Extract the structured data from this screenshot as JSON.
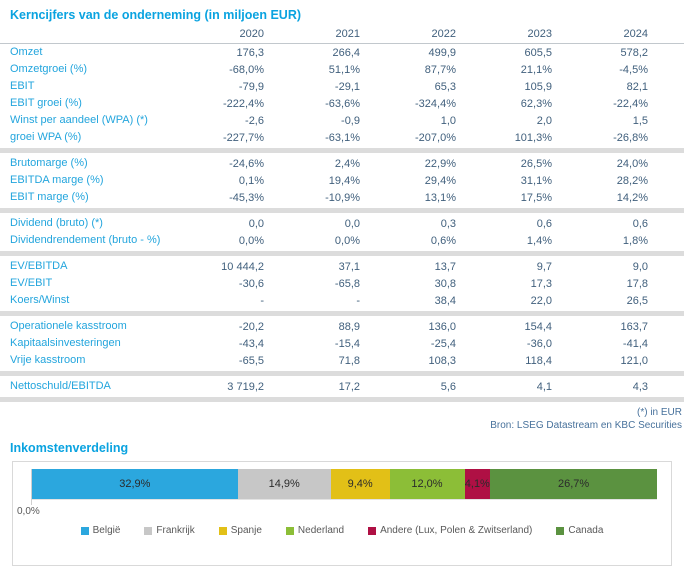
{
  "theme": {
    "accent_blue": "#0AA3E0",
    "row_label_blue": "#23A5DD",
    "value_text": "#41607D",
    "footnote_text": "#47719B",
    "separator_gray": "#DCDCDC",
    "legend_text": "#595959"
  },
  "chart_data": [
    {
      "type": "table",
      "title": "Kerncijfers van de onderneming (in miljoen EUR)",
      "columns": [
        "2020",
        "2021",
        "2022",
        "2023",
        "2024"
      ],
      "groups": [
        {
          "rows": [
            {
              "label": "Omzet",
              "values": [
                "176,3",
                "266,4",
                "499,9",
                "605,5",
                "578,2"
              ]
            },
            {
              "label": "Omzetgroei (%)",
              "values": [
                "-68,0%",
                "51,1%",
                "87,7%",
                "21,1%",
                "-4,5%"
              ]
            },
            {
              "label": "EBIT",
              "values": [
                "-79,9",
                "-29,1",
                "65,3",
                "105,9",
                "82,1"
              ]
            },
            {
              "label": "EBIT groei (%)",
              "values": [
                "-222,4%",
                "-63,6%",
                "-324,4%",
                "62,3%",
                "-22,4%"
              ]
            },
            {
              "label": "Winst per aandeel (WPA) (*)",
              "values": [
                "-2,6",
                "-0,9",
                "1,0",
                "2,0",
                "1,5"
              ]
            },
            {
              "label": "groei WPA (%)",
              "values": [
                "-227,7%",
                "-63,1%",
                "-207,0%",
                "101,3%",
                "-26,8%"
              ]
            }
          ]
        },
        {
          "rows": [
            {
              "label": "Brutomarge (%)",
              "values": [
                "-24,6%",
                "2,4%",
                "22,9%",
                "26,5%",
                "24,0%"
              ]
            },
            {
              "label": "EBITDA marge (%)",
              "values": [
                "0,1%",
                "19,4%",
                "29,4%",
                "31,1%",
                "28,2%"
              ]
            },
            {
              "label": "EBIT marge (%)",
              "values": [
                "-45,3%",
                "-10,9%",
                "13,1%",
                "17,5%",
                "14,2%"
              ]
            }
          ]
        },
        {
          "rows": [
            {
              "label": "Dividend (bruto) (*)",
              "values": [
                "0,0",
                "0,0",
                "0,3",
                "0,6",
                "0,6"
              ]
            },
            {
              "label": "Dividendrendement (bruto - %)",
              "values": [
                "0,0%",
                "0,0%",
                "0,6%",
                "1,4%",
                "1,8%"
              ]
            }
          ]
        },
        {
          "rows": [
            {
              "label": "EV/EBITDA",
              "values": [
                "10 444,2",
                "37,1",
                "13,7",
                "9,7",
                "9,0"
              ]
            },
            {
              "label": "EV/EBIT",
              "values": [
                "-30,6",
                "-65,8",
                "30,8",
                "17,3",
                "17,8"
              ]
            },
            {
              "label": "Koers/Winst",
              "values": [
                "-",
                "-",
                "38,4",
                "22,0",
                "26,5"
              ]
            }
          ]
        },
        {
          "rows": [
            {
              "label": "Operationele kasstroom",
              "values": [
                "-20,2",
                "88,9",
                "136,0",
                "154,4",
                "163,7"
              ]
            },
            {
              "label": "Kapitaalsinvesteringen",
              "values": [
                "-43,4",
                "-15,4",
                "-25,4",
                "-36,0",
                "-41,4"
              ]
            },
            {
              "label": "Vrije kasstroom",
              "values": [
                "-65,5",
                "71,8",
                "108,3",
                "118,4",
                "121,0"
              ]
            }
          ]
        },
        {
          "rows": [
            {
              "label": "Nettoschuld/EBITDA",
              "values": [
                "3 719,2",
                "17,2",
                "5,6",
                "4,1",
                "4,3"
              ]
            }
          ]
        }
      ],
      "footnotes": [
        "(*) in EUR",
        "Bron: LSEG Datastream en KBC Securities"
      ]
    },
    {
      "type": "bar",
      "variant": "stacked-horizontal",
      "title": "Inkomstenverdeling",
      "categories": [
        "België",
        "Frankrijk",
        "Spanje",
        "Nederland",
        "Andere (Lux, Polen & Zwitserland)",
        "Canada"
      ],
      "values": [
        32.9,
        14.9,
        9.4,
        12.0,
        4.1,
        26.7
      ],
      "value_labels": [
        "32,9%",
        "14,9%",
        "9,4%",
        "12,0%",
        "4,1%",
        "26,7%"
      ],
      "colors": [
        "#2BA7DE",
        "#C7C7C7",
        "#E2C017",
        "#8CBE37",
        "#AF1044",
        "#5B9240"
      ],
      "unit": "%",
      "xlim": [
        0,
        100
      ],
      "ticks": [
        "0,0%"
      ],
      "legend_position": "bottom",
      "grid": false
    }
  ]
}
